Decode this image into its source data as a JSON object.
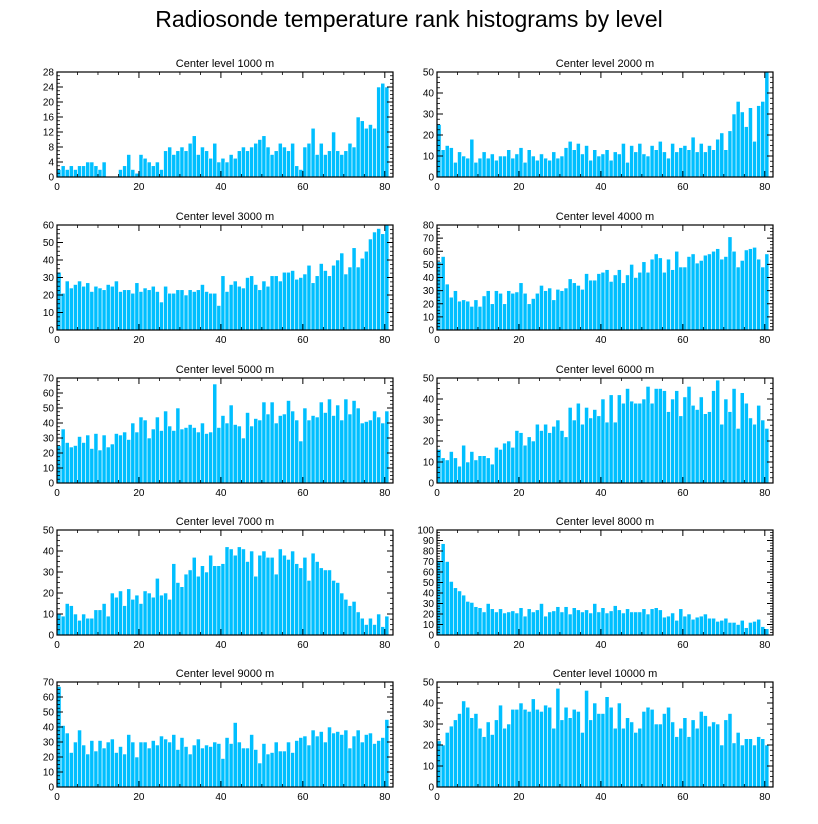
{
  "figure": {
    "title": "Radiosonde temperature rank histograms by level",
    "bar_color": "#00bfff",
    "bar_edge_color": "#ffffff",
    "axis_color": "#000000"
  },
  "chart_data": [
    {
      "type": "bar",
      "title": "Center level 1000 m",
      "xlim": [
        0,
        82
      ],
      "xticks": [
        0,
        20,
        40,
        60,
        80
      ],
      "ylim": [
        0,
        28
      ],
      "yticks": [
        0,
        4,
        8,
        12,
        16,
        20,
        24,
        28
      ],
      "values": [
        2,
        3,
        2,
        3,
        2,
        3,
        3,
        4,
        4,
        3,
        2,
        4,
        0,
        0,
        0,
        2,
        3,
        6,
        2,
        1,
        6,
        5,
        4,
        3,
        4,
        2,
        7,
        8,
        6,
        7,
        8,
        7,
        9,
        11,
        6,
        8,
        7,
        5,
        9,
        4,
        5,
        4,
        6,
        5,
        7,
        8,
        7,
        8,
        9,
        10,
        11,
        8,
        6,
        7,
        9,
        8,
        7,
        9,
        3,
        2,
        8,
        9,
        13,
        6,
        9,
        6,
        7,
        12,
        7,
        6,
        7,
        9,
        8,
        16,
        15,
        13,
        14,
        13,
        24,
        25,
        24
      ]
    },
    {
      "type": "bar",
      "title": "Center level 2000 m",
      "xlim": [
        0,
        82
      ],
      "xticks": [
        0,
        20,
        40,
        60,
        80
      ],
      "ylim": [
        0,
        50
      ],
      "yticks": [
        0,
        10,
        20,
        30,
        40,
        50
      ],
      "values": [
        25,
        13,
        15,
        14,
        7,
        12,
        10,
        9,
        18,
        7,
        9,
        12,
        9,
        11,
        8,
        10,
        10,
        13,
        9,
        11,
        14,
        7,
        13,
        10,
        8,
        11,
        9,
        8,
        12,
        9,
        10,
        14,
        17,
        13,
        16,
        11,
        15,
        8,
        13,
        10,
        11,
        13,
        8,
        12,
        11,
        16,
        7,
        15,
        12,
        16,
        11,
        10,
        15,
        13,
        17,
        12,
        9,
        16,
        12,
        14,
        15,
        13,
        19,
        12,
        16,
        12,
        15,
        13,
        18,
        21,
        13,
        22,
        30,
        36,
        31,
        24,
        33,
        17,
        34,
        36,
        50
      ]
    },
    {
      "type": "bar",
      "title": "Center level 3000 m",
      "xlim": [
        0,
        82
      ],
      "xticks": [
        0,
        20,
        40,
        60,
        80
      ],
      "ylim": [
        0,
        60
      ],
      "yticks": [
        0,
        10,
        20,
        30,
        40,
        50,
        60
      ],
      "values": [
        33,
        21,
        28,
        24,
        26,
        28,
        25,
        27,
        22,
        25,
        24,
        23,
        26,
        25,
        28,
        22,
        23,
        23,
        21,
        27,
        22,
        24,
        23,
        25,
        22,
        16,
        25,
        21,
        21,
        23,
        23,
        20,
        23,
        22,
        23,
        26,
        22,
        21,
        21,
        14,
        31,
        22,
        26,
        28,
        25,
        24,
        30,
        31,
        26,
        23,
        28,
        25,
        31,
        31,
        28,
        33,
        33,
        34,
        29,
        30,
        32,
        37,
        27,
        31,
        38,
        34,
        31,
        37,
        40,
        44,
        32,
        36,
        47,
        36,
        41,
        45,
        52,
        56,
        58,
        55,
        60
      ]
    },
    {
      "type": "bar",
      "title": "Center level 4000 m",
      "xlim": [
        0,
        82
      ],
      "xticks": [
        0,
        20,
        40,
        60,
        80
      ],
      "ylim": [
        0,
        80
      ],
      "yticks": [
        0,
        10,
        20,
        30,
        40,
        50,
        60,
        70,
        80
      ],
      "values": [
        52,
        56,
        35,
        25,
        30,
        22,
        23,
        22,
        18,
        23,
        18,
        26,
        30,
        20,
        30,
        28,
        20,
        30,
        28,
        29,
        36,
        28,
        20,
        24,
        28,
        34,
        30,
        32,
        23,
        31,
        30,
        32,
        39,
        36,
        34,
        31,
        43,
        38,
        38,
        43,
        44,
        46,
        37,
        42,
        46,
        36,
        42,
        50,
        40,
        44,
        52,
        44,
        54,
        58,
        55,
        44,
        54,
        46,
        60,
        48,
        48,
        56,
        58,
        51,
        53,
        57,
        58,
        60,
        62,
        54,
        56,
        71,
        60,
        48,
        53,
        61,
        62,
        63,
        54,
        48,
        58
      ]
    },
    {
      "type": "bar",
      "title": "Center level 5000 m",
      "xlim": [
        0,
        82
      ],
      "xticks": [
        0,
        20,
        40,
        60,
        80
      ],
      "ylim": [
        0,
        70
      ],
      "yticks": [
        0,
        10,
        20,
        30,
        40,
        50,
        60,
        70
      ],
      "values": [
        25,
        36,
        27,
        24,
        25,
        31,
        27,
        32,
        23,
        33,
        22,
        32,
        24,
        26,
        33,
        32,
        34,
        29,
        40,
        34,
        44,
        42,
        30,
        36,
        44,
        35,
        48,
        38,
        35,
        50,
        36,
        37,
        39,
        37,
        34,
        40,
        33,
        34,
        66,
        37,
        45,
        40,
        52,
        39,
        38,
        30,
        47,
        38,
        43,
        42,
        54,
        46,
        54,
        40,
        45,
        46,
        55,
        48,
        42,
        28,
        50,
        42,
        45,
        44,
        54,
        47,
        56,
        45,
        52,
        42,
        56,
        46,
        55,
        50,
        40,
        41,
        42,
        48,
        44,
        40,
        48
      ]
    },
    {
      "type": "bar",
      "title": "Center level 6000 m",
      "xlim": [
        0,
        82
      ],
      "xticks": [
        0,
        20,
        40,
        60,
        80
      ],
      "ylim": [
        0,
        50
      ],
      "yticks": [
        0,
        10,
        20,
        30,
        40,
        50
      ],
      "values": [
        16,
        12,
        11,
        15,
        12,
        8,
        18,
        10,
        15,
        11,
        13,
        13,
        12,
        9,
        17,
        16,
        19,
        20,
        17,
        25,
        24,
        18,
        22,
        20,
        28,
        25,
        28,
        24,
        27,
        30,
        25,
        22,
        36,
        30,
        38,
        28,
        36,
        31,
        35,
        32,
        40,
        29,
        42,
        29,
        42,
        38,
        45,
        39,
        38,
        38,
        40,
        46,
        38,
        45,
        45,
        44,
        34,
        40,
        44,
        32,
        41,
        46,
        37,
        35,
        41,
        33,
        34,
        44,
        49,
        28,
        40,
        34,
        45,
        26,
        43,
        38,
        31,
        28,
        37,
        30,
        26
      ]
    },
    {
      "type": "bar",
      "title": "Center level 7000 m",
      "xlim": [
        0,
        82
      ],
      "xticks": [
        0,
        20,
        40,
        60,
        80
      ],
      "ylim": [
        0,
        50
      ],
      "yticks": [
        0,
        10,
        20,
        30,
        40,
        50
      ],
      "values": [
        10,
        9,
        15,
        14,
        10,
        7,
        10,
        8,
        8,
        12,
        12,
        15,
        9,
        20,
        18,
        21,
        14,
        22,
        17,
        19,
        15,
        21,
        20,
        18,
        27,
        19,
        20,
        17,
        34,
        25,
        23,
        29,
        31,
        37,
        28,
        33,
        30,
        38,
        33,
        33,
        34,
        42,
        41,
        38,
        42,
        41,
        35,
        40,
        28,
        38,
        40,
        37,
        37,
        29,
        41,
        38,
        36,
        40,
        34,
        32,
        37,
        26,
        39,
        35,
        32,
        31,
        31,
        26,
        25,
        20,
        17,
        14,
        16,
        11,
        8,
        5,
        8,
        5,
        10,
        4,
        9
      ]
    },
    {
      "type": "bar",
      "title": "Center level 8000 m",
      "xlim": [
        0,
        82
      ],
      "xticks": [
        0,
        20,
        40,
        60,
        80
      ],
      "ylim": [
        0,
        100
      ],
      "yticks": [
        0,
        10,
        20,
        30,
        40,
        50,
        60,
        70,
        80,
        90,
        100
      ],
      "values": [
        71,
        87,
        70,
        51,
        45,
        42,
        38,
        32,
        31,
        27,
        26,
        22,
        30,
        25,
        22,
        25,
        21,
        22,
        23,
        21,
        26,
        18,
        25,
        22,
        24,
        30,
        18,
        22,
        23,
        27,
        22,
        27,
        20,
        26,
        24,
        22,
        24,
        21,
        30,
        22,
        26,
        21,
        23,
        28,
        24,
        21,
        25,
        22,
        22,
        22,
        25,
        20,
        25,
        26,
        24,
        17,
        18,
        21,
        14,
        25,
        18,
        20,
        15,
        17,
        18,
        20,
        16,
        16,
        13,
        14,
        16,
        12,
        12,
        10,
        14,
        7,
        12,
        13,
        15,
        8,
        6
      ]
    },
    {
      "type": "bar",
      "title": "Center level 9000 m",
      "xlim": [
        0,
        82
      ],
      "xticks": [
        0,
        20,
        40,
        60,
        80
      ],
      "ylim": [
        0,
        70
      ],
      "yticks": [
        0,
        10,
        20,
        30,
        40,
        50,
        60,
        70
      ],
      "values": [
        67,
        41,
        36,
        23,
        30,
        38,
        28,
        22,
        31,
        24,
        31,
        26,
        30,
        32,
        23,
        27,
        22,
        35,
        30,
        20,
        30,
        30,
        26,
        31,
        28,
        34,
        32,
        30,
        35,
        25,
        33,
        27,
        22,
        28,
        32,
        26,
        28,
        27,
        30,
        29,
        19,
        33,
        29,
        43,
        30,
        26,
        26,
        35,
        25,
        16,
        29,
        22,
        23,
        30,
        24,
        24,
        30,
        23,
        31,
        33,
        34,
        28,
        38,
        34,
        37,
        30,
        40,
        36,
        37,
        35,
        38,
        26,
        34,
        38,
        30,
        35,
        36,
        29,
        31,
        33,
        45
      ]
    },
    {
      "type": "bar",
      "title": "Center level 10000 m",
      "xlim": [
        0,
        82
      ],
      "xticks": [
        0,
        20,
        40,
        60,
        80
      ],
      "ylim": [
        0,
        50
      ],
      "yticks": [
        0,
        10,
        20,
        30,
        40,
        50
      ],
      "values": [
        22,
        20,
        26,
        29,
        32,
        35,
        41,
        38,
        33,
        35,
        28,
        24,
        31,
        25,
        32,
        39,
        28,
        30,
        37,
        37,
        40,
        37,
        36,
        42,
        37,
        36,
        39,
        38,
        28,
        47,
        32,
        38,
        33,
        37,
        36,
        26,
        46,
        32,
        40,
        35,
        35,
        43,
        38,
        28,
        40,
        28,
        33,
        31,
        26,
        28,
        36,
        38,
        37,
        30,
        30,
        35,
        38,
        31,
        24,
        28,
        33,
        24,
        32,
        28,
        36,
        34,
        29,
        31,
        30,
        20,
        32,
        35,
        21,
        26,
        20,
        23,
        23,
        20,
        24,
        23,
        20
      ]
    }
  ]
}
